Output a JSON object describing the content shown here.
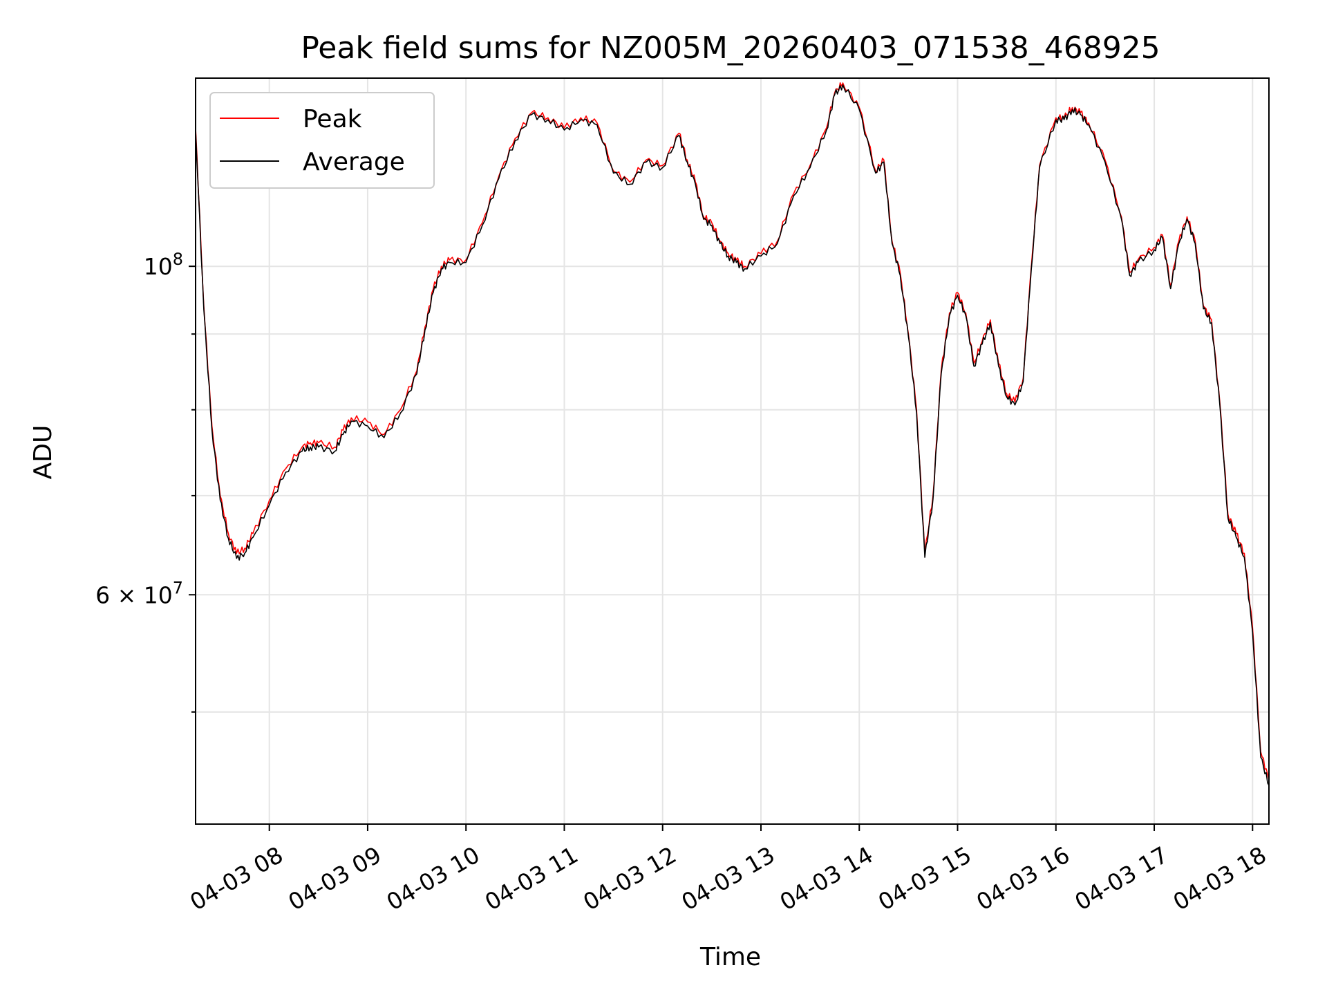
{
  "chart_data": {
    "type": "line",
    "title": "Peak field sums for NZ005M_20260403_071538_468925",
    "xlabel": "Time",
    "ylabel": "ADU",
    "x_ticks": [
      "04-03 08",
      "04-03 09",
      "04-03 10",
      "04-03 11",
      "04-03 12",
      "04-03 13",
      "04-03 14",
      "04-03 15",
      "04-03 16",
      "04-03 17",
      "04-03 18"
    ],
    "y_ticks_major": [
      "10^8",
      "6×10^7"
    ],
    "y_scale": "log",
    "grid": true,
    "legend_position": "upper-left",
    "xlim": [
      "2026-04-03 07:15",
      "2026-04-03 18:10"
    ],
    "ylim": [
      42000000,
      134000000
    ],
    "series": [
      {
        "name": "Peak",
        "color": "#ff0000",
        "x": [
          "2026-04-03 07:15",
          "2026-04-03 07:20",
          "2026-04-03 07:25",
          "2026-04-03 07:30",
          "2026-04-03 07:35",
          "2026-04-03 07:40",
          "2026-04-03 07:45",
          "2026-04-03 07:50",
          "2026-04-03 08:00",
          "2026-04-03 08:10",
          "2026-04-03 08:20",
          "2026-04-03 08:25",
          "2026-04-03 08:30",
          "2026-04-03 08:40",
          "2026-04-03 08:45",
          "2026-04-03 08:50",
          "2026-04-03 09:00",
          "2026-04-03 09:10",
          "2026-04-03 09:20",
          "2026-04-03 09:30",
          "2026-04-03 09:35",
          "2026-04-03 09:40",
          "2026-04-03 09:45",
          "2026-04-03 09:50",
          "2026-04-03 10:00",
          "2026-04-03 10:10",
          "2026-04-03 10:20",
          "2026-04-03 10:30",
          "2026-04-03 10:40",
          "2026-04-03 10:50",
          "2026-04-03 11:00",
          "2026-04-03 11:10",
          "2026-04-03 11:20",
          "2026-04-03 11:30",
          "2026-04-03 11:40",
          "2026-04-03 11:50",
          "2026-04-03 12:00",
          "2026-04-03 12:10",
          "2026-04-03 12:15",
          "2026-04-03 12:20",
          "2026-04-03 12:25",
          "2026-04-03 12:30",
          "2026-04-03 12:35",
          "2026-04-03 12:40",
          "2026-04-03 12:45",
          "2026-04-03 12:50",
          "2026-04-03 13:00",
          "2026-04-03 13:10",
          "2026-04-03 13:20",
          "2026-04-03 13:30",
          "2026-04-03 13:40",
          "2026-04-03 13:45",
          "2026-04-03 13:50",
          "2026-04-03 14:00",
          "2026-04-03 14:10",
          "2026-04-03 14:15",
          "2026-04-03 14:20",
          "2026-04-03 14:25",
          "2026-04-03 14:30",
          "2026-04-03 14:35",
          "2026-04-03 14:40",
          "2026-04-03 14:45",
          "2026-04-03 14:50",
          "2026-04-03 14:55",
          "2026-04-03 15:00",
          "2026-04-03 15:05",
          "2026-04-03 15:10",
          "2026-04-03 15:15",
          "2026-04-03 15:20",
          "2026-04-03 15:25",
          "2026-04-03 15:30",
          "2026-04-03 15:35",
          "2026-04-03 15:40",
          "2026-04-03 15:45",
          "2026-04-03 15:50",
          "2026-04-03 16:00",
          "2026-04-03 16:05",
          "2026-04-03 16:10",
          "2026-04-03 16:15",
          "2026-04-03 16:20",
          "2026-04-03 16:30",
          "2026-04-03 16:40",
          "2026-04-03 16:45",
          "2026-04-03 16:50",
          "2026-04-03 17:00",
          "2026-04-03 17:05",
          "2026-04-03 17:10",
          "2026-04-03 17:15",
          "2026-04-03 17:20",
          "2026-04-03 17:25",
          "2026-04-03 17:30",
          "2026-04-03 17:35",
          "2026-04-03 17:40",
          "2026-04-03 17:45",
          "2026-04-03 17:50",
          "2026-04-03 17:55",
          "2026-04-03 18:00",
          "2026-04-03 18:05",
          "2026-04-03 18:10"
        ],
        "y": [
          124000000,
          94000000,
          78000000,
          70000000,
          66000000,
          64000000,
          64500000,
          66000000,
          69500000,
          73000000,
          75500000,
          76000000,
          76000000,
          75500000,
          77500000,
          79000000,
          78500000,
          77000000,
          80000000,
          85000000,
          91000000,
          96500000,
          100000000,
          101000000,
          101000000,
          107000000,
          115000000,
          122000000,
          127000000,
          126000000,
          124000000,
          126000000,
          125000000,
          116000000,
          114000000,
          118000000,
          117000000,
          123000000,
          118000000,
          114000000,
          108000000,
          107000000,
          104000000,
          102000000,
          101000000,
          100000000,
          102000000,
          104000000,
          112000000,
          117000000,
          124000000,
          131000000,
          133000000,
          128000000,
          116000000,
          118000000,
          104000000,
          99000000,
          90000000,
          80000000,
          64000000,
          70000000,
          85000000,
          93000000,
          96000000,
          93000000,
          86000000,
          89000000,
          92000000,
          86000000,
          82000000,
          81000000,
          84000000,
          100000000,
          117000000,
          126000000,
          126000000,
          128000000,
          127000000,
          125000000,
          118000000,
          108000000,
          99000000,
          101000000,
          103000000,
          105000000,
          97000000,
          104000000,
          108000000,
          104000000,
          94000000,
          92000000,
          81000000,
          68000000,
          66000000,
          64000000,
          57000000,
          47000000,
          45000000
        ]
      },
      {
        "name": "Average",
        "color": "#000000",
        "x": [
          "2026-04-03 07:15",
          "2026-04-03 07:20",
          "2026-04-03 07:25",
          "2026-04-03 07:30",
          "2026-04-03 07:35",
          "2026-04-03 07:40",
          "2026-04-03 07:45",
          "2026-04-03 07:50",
          "2026-04-03 08:00",
          "2026-04-03 08:10",
          "2026-04-03 08:20",
          "2026-04-03 08:25",
          "2026-04-03 08:30",
          "2026-04-03 08:40",
          "2026-04-03 08:45",
          "2026-04-03 08:50",
          "2026-04-03 09:00",
          "2026-04-03 09:10",
          "2026-04-03 09:20",
          "2026-04-03 09:30",
          "2026-04-03 09:35",
          "2026-04-03 09:40",
          "2026-04-03 09:45",
          "2026-04-03 09:50",
          "2026-04-03 10:00",
          "2026-04-03 10:10",
          "2026-04-03 10:20",
          "2026-04-03 10:30",
          "2026-04-03 10:40",
          "2026-04-03 10:50",
          "2026-04-03 11:00",
          "2026-04-03 11:10",
          "2026-04-03 11:20",
          "2026-04-03 11:30",
          "2026-04-03 11:40",
          "2026-04-03 11:50",
          "2026-04-03 12:00",
          "2026-04-03 12:10",
          "2026-04-03 12:15",
          "2026-04-03 12:20",
          "2026-04-03 12:25",
          "2026-04-03 12:30",
          "2026-04-03 12:35",
          "2026-04-03 12:40",
          "2026-04-03 12:45",
          "2026-04-03 12:50",
          "2026-04-03 13:00",
          "2026-04-03 13:10",
          "2026-04-03 13:20",
          "2026-04-03 13:30",
          "2026-04-03 13:40",
          "2026-04-03 13:45",
          "2026-04-03 13:50",
          "2026-04-03 14:00",
          "2026-04-03 14:10",
          "2026-04-03 14:15",
          "2026-04-03 14:20",
          "2026-04-03 14:25",
          "2026-04-03 14:30",
          "2026-04-03 14:35",
          "2026-04-03 14:40",
          "2026-04-03 14:45",
          "2026-04-03 14:50",
          "2026-04-03 14:55",
          "2026-04-03 15:00",
          "2026-04-03 15:05",
          "2026-04-03 15:10",
          "2026-04-03 15:15",
          "2026-04-03 15:20",
          "2026-04-03 15:25",
          "2026-04-03 15:30",
          "2026-04-03 15:35",
          "2026-04-03 15:40",
          "2026-04-03 15:45",
          "2026-04-03 15:50",
          "2026-04-03 16:00",
          "2026-04-03 16:05",
          "2026-04-03 16:10",
          "2026-04-03 16:15",
          "2026-04-03 16:20",
          "2026-04-03 16:30",
          "2026-04-03 16:40",
          "2026-04-03 16:45",
          "2026-04-03 16:50",
          "2026-04-03 17:00",
          "2026-04-03 17:05",
          "2026-04-03 17:10",
          "2026-04-03 17:15",
          "2026-04-03 17:20",
          "2026-04-03 17:25",
          "2026-04-03 17:30",
          "2026-04-03 17:35",
          "2026-04-03 17:40",
          "2026-04-03 17:45",
          "2026-04-03 17:50",
          "2026-04-03 17:55",
          "2026-04-03 18:00",
          "2026-04-03 18:05",
          "2026-04-03 18:10"
        ],
        "y": [
          123500000,
          93500000,
          77500000,
          69500000,
          65500000,
          63500000,
          64000000,
          65600000,
          69000000,
          72600000,
          75000000,
          75500000,
          75500000,
          75000000,
          77000000,
          78600000,
          78000000,
          76600000,
          79600000,
          84600000,
          90600000,
          96000000,
          99600000,
          100600000,
          100600000,
          106600000,
          114600000,
          121600000,
          126600000,
          125600000,
          123600000,
          125600000,
          124600000,
          115600000,
          113600000,
          117600000,
          116600000,
          122600000,
          117600000,
          113600000,
          107600000,
          106600000,
          103600000,
          101600000,
          100600000,
          99600000,
          101600000,
          103600000,
          111600000,
          116600000,
          123600000,
          130600000,
          132600000,
          127600000,
          115600000,
          117600000,
          103600000,
          98600000,
          89600000,
          79600000,
          63600000,
          69600000,
          84600000,
          92600000,
          95600000,
          92600000,
          85600000,
          88600000,
          91600000,
          85600000,
          81600000,
          80600000,
          83600000,
          99600000,
          116600000,
          125600000,
          125600000,
          127600000,
          126600000,
          124600000,
          117600000,
          107600000,
          98600000,
          100600000,
          102600000,
          104600000,
          96600000,
          103600000,
          107600000,
          103600000,
          93600000,
          91600000,
          80600000,
          67600000,
          65600000,
          63600000,
          56600000,
          46600000,
          44600000
        ]
      }
    ]
  }
}
